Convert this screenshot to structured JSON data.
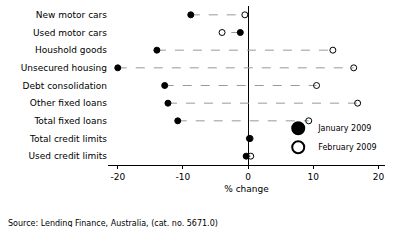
{
  "chart_data": {
    "type": "dot",
    "orientation": "horizontal",
    "categories": [
      "New motor cars",
      "Used motor cars",
      "Houshold goods",
      "Unsecured housing",
      "Debt consolidation",
      "Other fixed loans",
      "Total fixed loans",
      "Total credit limits",
      "Used credit limits"
    ],
    "series": [
      {
        "name": "January 2009",
        "color": "#000000",
        "marker": "circle",
        "values": [
          -8.8,
          -1.2,
          -14.0,
          -20.0,
          -12.8,
          -12.3,
          -10.8,
          0.2,
          -0.3
        ]
      },
      {
        "name": "February 2009",
        "color": "#000000",
        "marker": "circle-open",
        "values": [
          -0.5,
          -4.0,
          13.0,
          16.2,
          10.5,
          16.8,
          9.3,
          0.3,
          0.4
        ]
      }
    ],
    "line_style": "dash",
    "xlabel": "% change",
    "xlim": [
      -21.5,
      21
    ],
    "xticks": [
      -20,
      -10,
      0,
      10,
      20
    ],
    "grid": false,
    "legend": "lower right",
    "annotations": [
      "Source: Lending Finance, Australia, (cat. no. 5671.0)"
    ]
  }
}
